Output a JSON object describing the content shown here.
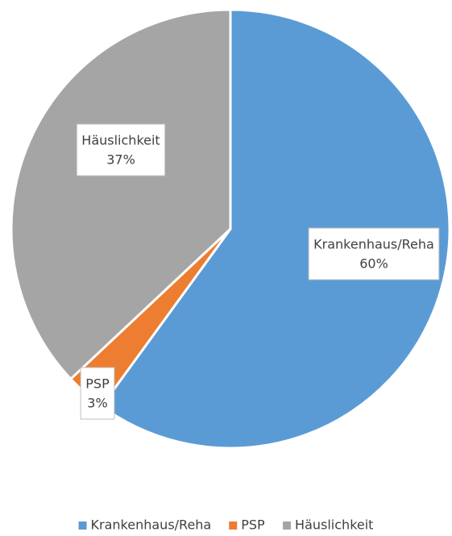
{
  "chart_data": {
    "type": "pie",
    "categories": [
      "Krankenhaus/Reha",
      "PSP",
      "Häuslichkeit"
    ],
    "values": [
      60,
      3,
      37
    ],
    "value_labels": [
      "60%",
      "3%",
      "37%"
    ],
    "colors": [
      "#5b9bd5",
      "#ed7d31",
      "#a5a5a5"
    ],
    "legend": "bottom"
  }
}
